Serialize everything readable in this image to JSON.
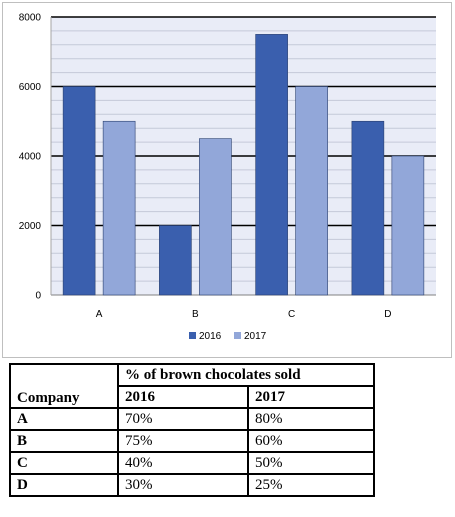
{
  "chart_data": {
    "type": "bar",
    "title": "",
    "xlabel": "",
    "ylabel": "",
    "categories": [
      "A",
      "B",
      "C",
      "D"
    ],
    "series": [
      {
        "name": "2016",
        "values": [
          6000,
          2000,
          7500,
          5000
        ],
        "color": "#3a5fae"
      },
      {
        "name": "2017",
        "values": [
          5000,
          4500,
          6000,
          4000
        ],
        "color": "#92a7d9"
      }
    ],
    "ylim": [
      0,
      8000
    ],
    "yticks": [
      0,
      2000,
      4000,
      6000,
      8000
    ],
    "major_grid": true,
    "minor_gridlines": true,
    "plot_background": "#e9ecf7",
    "legend_position": "bottom"
  },
  "table": {
    "company_header": "Company",
    "group_header": "% of brown chocolates sold",
    "year_headers": [
      "2016",
      "2017"
    ],
    "rows": [
      {
        "company": "A",
        "y2016": "70%",
        "y2017": "80%"
      },
      {
        "company": "B",
        "y2016": "75%",
        "y2017": "60%"
      },
      {
        "company": "C",
        "y2016": "40%",
        "y2017": "50%"
      },
      {
        "company": "D",
        "y2016": "30%",
        "y2017": "25%"
      }
    ]
  }
}
